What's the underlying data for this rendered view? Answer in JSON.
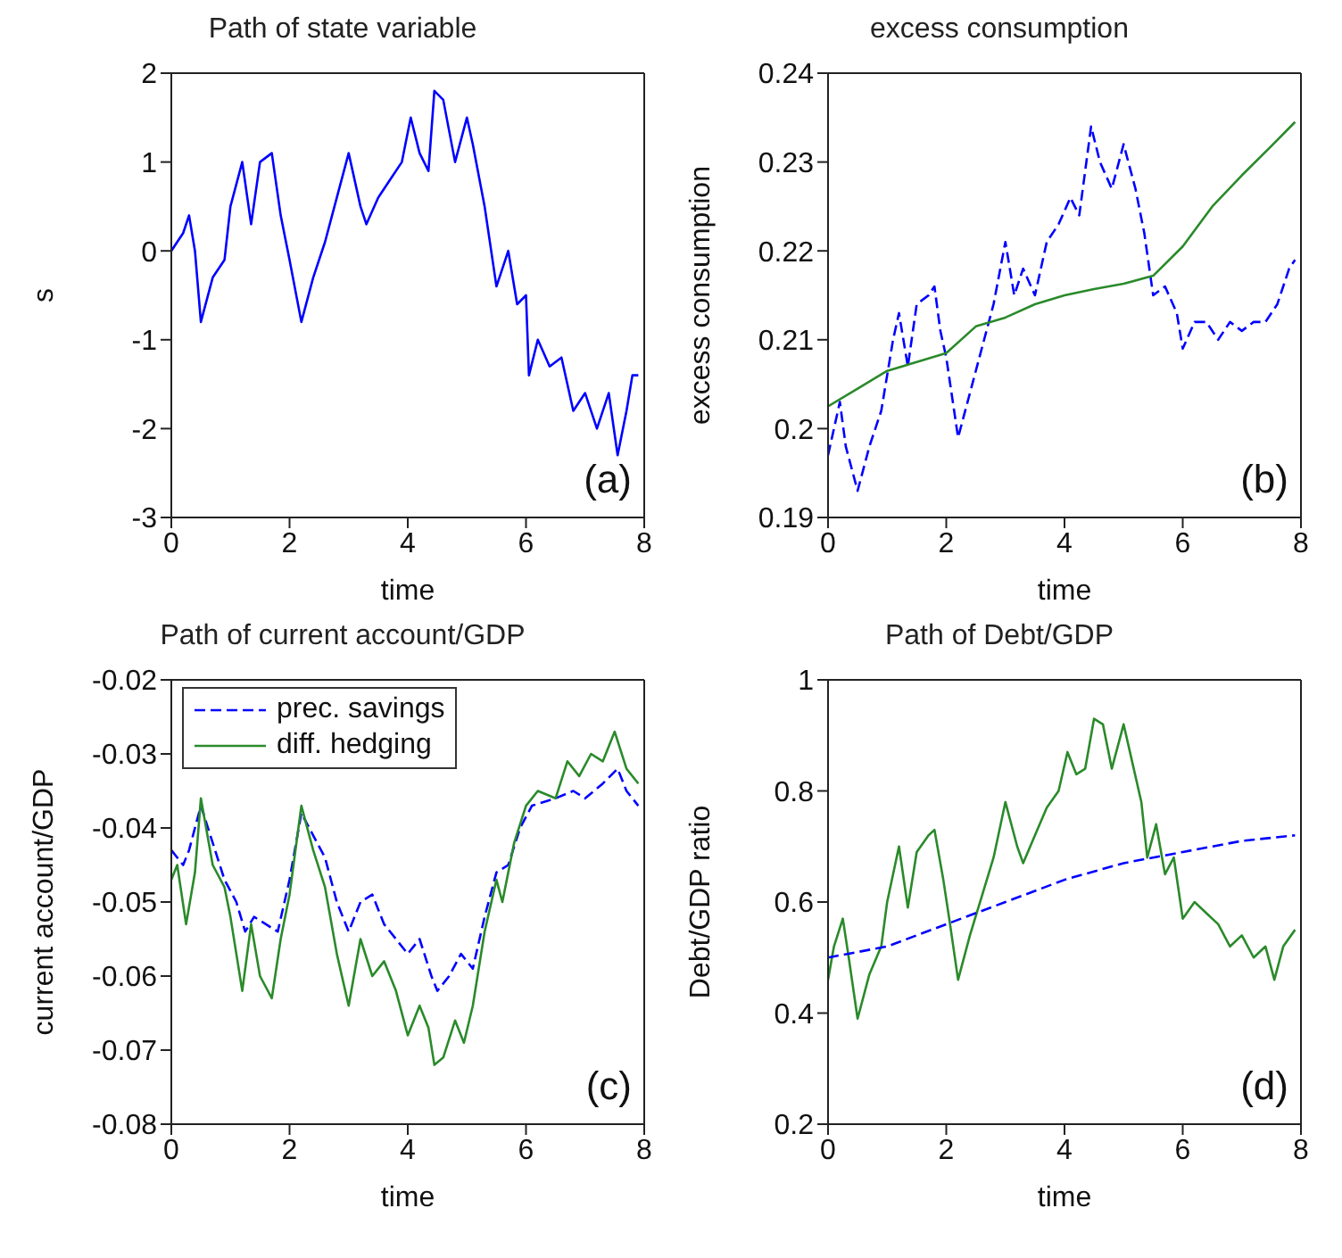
{
  "chart_data": [
    {
      "type": "line",
      "title": "Path of state variable",
      "xlabel": "time",
      "ylabel": "s",
      "annotations": [
        "(a)"
      ],
      "xlim": [
        0,
        8
      ],
      "xticks": [
        0,
        2,
        4,
        6,
        8
      ],
      "ylim": [
        -3,
        2
      ],
      "yticks": [
        -3,
        -2,
        -1,
        0,
        1,
        2
      ],
      "series": [
        {
          "color": "#0000ff",
          "line_style": "solid",
          "x": [
            0,
            0.2,
            0.3,
            0.4,
            0.5,
            0.7,
            0.9,
            1.0,
            1.2,
            1.35,
            1.5,
            1.7,
            1.85,
            2.0,
            2.2,
            2.4,
            2.6,
            2.8,
            3.0,
            3.2,
            3.3,
            3.5,
            3.7,
            3.9,
            4.05,
            4.2,
            4.35,
            4.45,
            4.6,
            4.8,
            5.0,
            5.1,
            5.3,
            5.5,
            5.7,
            5.85,
            6.0,
            6.05,
            6.2,
            6.4,
            6.6,
            6.8,
            7.0,
            7.2,
            7.4,
            7.55,
            7.7,
            7.8,
            7.9
          ],
          "values": [
            0,
            0.2,
            0.4,
            0.0,
            -0.8,
            -0.3,
            -0.1,
            0.5,
            1.0,
            0.3,
            1.0,
            1.1,
            0.4,
            -0.1,
            -0.8,
            -0.3,
            0.1,
            0.6,
            1.1,
            0.5,
            0.3,
            0.6,
            0.8,
            1.0,
            1.5,
            1.1,
            0.9,
            1.8,
            1.7,
            1.0,
            1.5,
            1.2,
            0.5,
            -0.4,
            0.0,
            -0.6,
            -0.5,
            -1.4,
            -1.0,
            -1.3,
            -1.2,
            -1.8,
            -1.6,
            -2.0,
            -1.6,
            -2.3,
            -1.8,
            -1.4,
            -1.4
          ]
        }
      ]
    },
    {
      "type": "line",
      "title": "excess consumption",
      "xlabel": "time",
      "ylabel": "excess consumption",
      "annotations": [
        "(b)"
      ],
      "xlim": [
        0,
        8
      ],
      "xticks": [
        0,
        2,
        4,
        6,
        8
      ],
      "ylim": [
        0.19,
        0.24
      ],
      "yticks": [
        0.19,
        0.2,
        0.21,
        0.22,
        0.23,
        0.24
      ],
      "series": [
        {
          "color": "#0000ff",
          "line_style": "dashed",
          "x": [
            0,
            0.1,
            0.2,
            0.3,
            0.5,
            0.7,
            0.9,
            1.1,
            1.2,
            1.35,
            1.5,
            1.7,
            1.8,
            1.9,
            2.0,
            2.2,
            2.4,
            2.6,
            2.8,
            3.0,
            3.15,
            3.3,
            3.5,
            3.7,
            3.9,
            4.1,
            4.25,
            4.45,
            4.6,
            4.8,
            5.0,
            5.2,
            5.35,
            5.5,
            5.7,
            5.9,
            6.0,
            6.2,
            6.4,
            6.6,
            6.8,
            7.0,
            7.2,
            7.4,
            7.6,
            7.8,
            7.9
          ],
          "values": [
            0.197,
            0.2,
            0.203,
            0.198,
            0.193,
            0.198,
            0.202,
            0.21,
            0.213,
            0.207,
            0.214,
            0.215,
            0.216,
            0.211,
            0.208,
            0.199,
            0.204,
            0.209,
            0.214,
            0.221,
            0.215,
            0.218,
            0.215,
            0.221,
            0.223,
            0.226,
            0.224,
            0.234,
            0.23,
            0.227,
            0.232,
            0.227,
            0.222,
            0.215,
            0.216,
            0.213,
            0.209,
            0.212,
            0.212,
            0.21,
            0.212,
            0.211,
            0.212,
            0.212,
            0.214,
            0.218,
            0.219
          ]
        },
        {
          "color": "#2a8a2a",
          "line_style": "solid",
          "x": [
            0,
            0.5,
            1.0,
            1.5,
            2.0,
            2.5,
            3.0,
            3.5,
            4.0,
            4.5,
            5.0,
            5.5,
            6.0,
            6.5,
            7.0,
            7.5,
            7.9
          ],
          "values": [
            0.2025,
            0.2045,
            0.2065,
            0.2075,
            0.2085,
            0.2115,
            0.2125,
            0.214,
            0.215,
            0.2157,
            0.2163,
            0.2172,
            0.2205,
            0.225,
            0.2285,
            0.2318,
            0.2345
          ]
        }
      ]
    },
    {
      "type": "line",
      "title": "Path of current account/GDP",
      "xlabel": "time",
      "ylabel": "current account/GDP",
      "annotations": [
        "(c)"
      ],
      "xlim": [
        0,
        8
      ],
      "xticks": [
        0,
        2,
        4,
        6,
        8
      ],
      "ylim": [
        -0.08,
        -0.02
      ],
      "yticks": [
        -0.08,
        -0.07,
        -0.06,
        -0.05,
        -0.04,
        -0.03,
        -0.02
      ],
      "legend": "top left",
      "series": [
        {
          "name": "prec. savings",
          "color": "#0000ff",
          "line_style": "dashed",
          "x": [
            0,
            0.2,
            0.3,
            0.5,
            0.7,
            0.9,
            1.1,
            1.25,
            1.4,
            1.6,
            1.8,
            2.0,
            2.2,
            2.4,
            2.6,
            2.8,
            3.0,
            3.2,
            3.4,
            3.6,
            3.8,
            4.0,
            4.2,
            4.4,
            4.5,
            4.7,
            4.9,
            5.1,
            5.3,
            5.5,
            5.7,
            5.9,
            6.1,
            6.5,
            6.8,
            7.0,
            7.3,
            7.55,
            7.7,
            7.9
          ],
          "values": [
            -0.043,
            -0.045,
            -0.043,
            -0.037,
            -0.042,
            -0.047,
            -0.05,
            -0.054,
            -0.052,
            -0.053,
            -0.054,
            -0.047,
            -0.038,
            -0.041,
            -0.044,
            -0.05,
            -0.054,
            -0.05,
            -0.049,
            -0.053,
            -0.055,
            -0.057,
            -0.055,
            -0.06,
            -0.062,
            -0.06,
            -0.057,
            -0.059,
            -0.052,
            -0.046,
            -0.045,
            -0.04,
            -0.037,
            -0.036,
            -0.035,
            -0.036,
            -0.034,
            -0.032,
            -0.035,
            -0.037
          ]
        },
        {
          "name": "diff. hedging",
          "color": "#2a8a2a",
          "line_style": "solid",
          "x": [
            0,
            0.1,
            0.25,
            0.4,
            0.5,
            0.7,
            0.9,
            1.0,
            1.2,
            1.35,
            1.5,
            1.7,
            1.85,
            2.0,
            2.2,
            2.4,
            2.6,
            2.8,
            3.0,
            3.2,
            3.4,
            3.6,
            3.8,
            4.0,
            4.2,
            4.35,
            4.45,
            4.6,
            4.8,
            4.95,
            5.1,
            5.3,
            5.5,
            5.6,
            5.8,
            6.0,
            6.2,
            6.5,
            6.7,
            6.9,
            7.1,
            7.3,
            7.5,
            7.7,
            7.9
          ],
          "values": [
            -0.047,
            -0.045,
            -0.053,
            -0.046,
            -0.036,
            -0.045,
            -0.048,
            -0.052,
            -0.062,
            -0.053,
            -0.06,
            -0.063,
            -0.055,
            -0.049,
            -0.037,
            -0.043,
            -0.048,
            -0.057,
            -0.064,
            -0.055,
            -0.06,
            -0.058,
            -0.062,
            -0.068,
            -0.064,
            -0.067,
            -0.072,
            -0.071,
            -0.066,
            -0.069,
            -0.064,
            -0.054,
            -0.047,
            -0.05,
            -0.042,
            -0.037,
            -0.035,
            -0.036,
            -0.031,
            -0.033,
            -0.03,
            -0.031,
            -0.027,
            -0.032,
            -0.034
          ]
        }
      ]
    },
    {
      "type": "line",
      "title": "Path of Debt/GDP",
      "xlabel": "time",
      "ylabel": "Debt/GDP ratio",
      "annotations": [
        "(d)"
      ],
      "xlim": [
        0,
        8
      ],
      "xticks": [
        0,
        2,
        4,
        6,
        8
      ],
      "ylim": [
        0.2,
        1
      ],
      "yticks": [
        0.2,
        0.4,
        0.6,
        0.8,
        1
      ],
      "series": [
        {
          "color": "#2a8a2a",
          "line_style": "solid",
          "x": [
            0,
            0.1,
            0.25,
            0.35,
            0.5,
            0.7,
            0.9,
            1.0,
            1.2,
            1.35,
            1.5,
            1.7,
            1.8,
            1.95,
            2.05,
            2.2,
            2.4,
            2.6,
            2.8,
            3.0,
            3.2,
            3.3,
            3.5,
            3.7,
            3.9,
            4.05,
            4.2,
            4.35,
            4.5,
            4.65,
            4.8,
            5.0,
            5.15,
            5.3,
            5.4,
            5.55,
            5.7,
            5.85,
            6.0,
            6.2,
            6.4,
            6.6,
            6.8,
            7.0,
            7.2,
            7.4,
            7.55,
            7.7,
            7.9
          ],
          "values": [
            0.46,
            0.52,
            0.57,
            0.5,
            0.39,
            0.47,
            0.52,
            0.6,
            0.7,
            0.59,
            0.69,
            0.72,
            0.73,
            0.64,
            0.57,
            0.46,
            0.54,
            0.61,
            0.68,
            0.78,
            0.7,
            0.67,
            0.72,
            0.77,
            0.8,
            0.87,
            0.83,
            0.84,
            0.93,
            0.92,
            0.84,
            0.92,
            0.85,
            0.78,
            0.68,
            0.74,
            0.65,
            0.68,
            0.57,
            0.6,
            0.58,
            0.56,
            0.52,
            0.54,
            0.5,
            0.52,
            0.46,
            0.52,
            0.55
          ]
        },
        {
          "color": "#0000ff",
          "line_style": "dashed",
          "x": [
            0,
            1,
            2,
            3,
            4,
            5,
            6,
            7,
            7.9
          ],
          "values": [
            0.5,
            0.52,
            0.56,
            0.6,
            0.64,
            0.67,
            0.69,
            0.71,
            0.72
          ]
        }
      ]
    }
  ]
}
